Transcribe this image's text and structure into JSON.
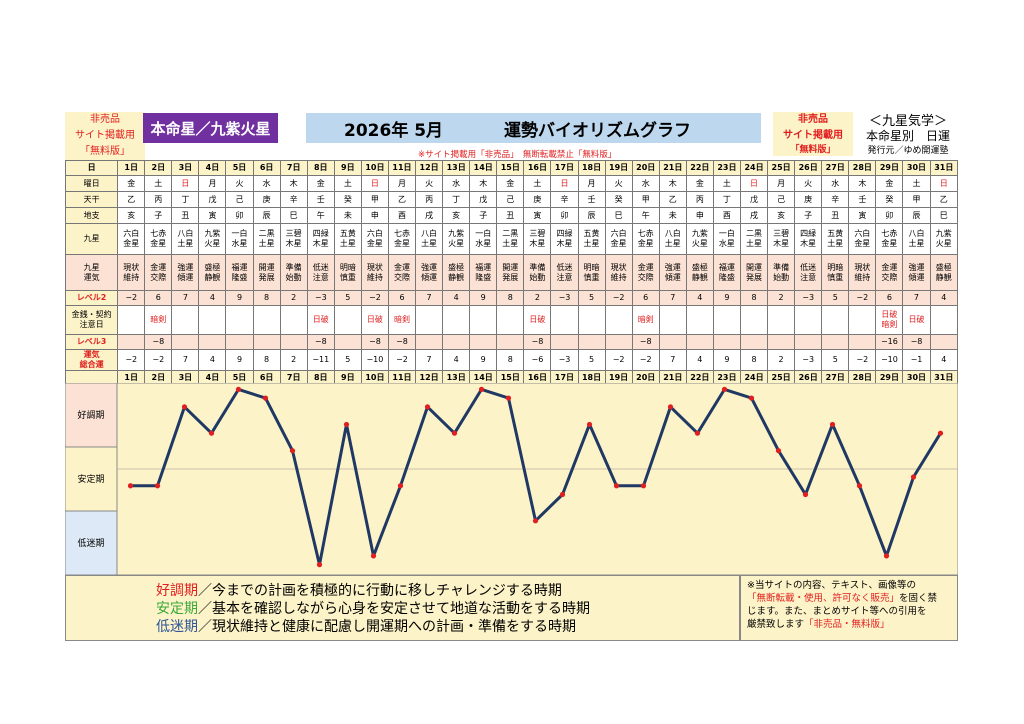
{
  "header": {
    "badge_left": [
      "非売品",
      "サイト掲載用",
      "「無料版」"
    ],
    "honmei": "本命星／九紫火星",
    "title_date": "2026年 5月",
    "title_main": "運勢バイオリズムグラフ",
    "badge_right": [
      "非売品",
      "サイト掲載用",
      "「無料版」"
    ],
    "kyusei_title": "＜九星気学＞",
    "kyusei_sub": "本命星別　日運",
    "publisher": "発行元／ゆめ開運塾",
    "notice": "※サイト掲載用「非売品」　無断転載禁止「無料版」"
  },
  "table": {
    "labels": {
      "day": "日",
      "dow": "曜日",
      "kan": "天干",
      "shi": "地支",
      "star": "九星",
      "unki": [
        "九星",
        "運気"
      ],
      "lv2": "レベル2",
      "kin": [
        "金銭・契約",
        "注意日"
      ],
      "lv3": "レベル3",
      "total": [
        "運気",
        "総合運"
      ]
    },
    "days": [
      "1日",
      "2日",
      "3日",
      "4日",
      "5日",
      "6日",
      "7日",
      "8日",
      "9日",
      "10日",
      "11日",
      "12日",
      "13日",
      "14日",
      "15日",
      "16日",
      "17日",
      "18日",
      "19日",
      "20日",
      "21日",
      "22日",
      "23日",
      "24日",
      "25日",
      "26日",
      "27日",
      "28日",
      "29日",
      "30日",
      "31日"
    ],
    "dow": [
      "金",
      "土",
      "日",
      "月",
      "火",
      "水",
      "木",
      "金",
      "土",
      "日",
      "月",
      "火",
      "水",
      "木",
      "金",
      "土",
      "日",
      "月",
      "火",
      "水",
      "木",
      "金",
      "土",
      "日",
      "月",
      "火",
      "水",
      "木",
      "金",
      "土",
      "日"
    ],
    "kan": [
      "乙",
      "丙",
      "丁",
      "戊",
      "己",
      "庚",
      "辛",
      "壬",
      "癸",
      "甲",
      "乙",
      "丙",
      "丁",
      "戊",
      "己",
      "庚",
      "辛",
      "壬",
      "癸",
      "甲",
      "乙",
      "丙",
      "丁",
      "戊",
      "己",
      "庚",
      "辛",
      "壬",
      "癸",
      "甲",
      "乙"
    ],
    "shi": [
      "亥",
      "子",
      "丑",
      "寅",
      "卯",
      "辰",
      "巳",
      "午",
      "未",
      "申",
      "酉",
      "戌",
      "亥",
      "子",
      "丑",
      "寅",
      "卯",
      "辰",
      "巳",
      "午",
      "未",
      "申",
      "酉",
      "戌",
      "亥",
      "子",
      "丑",
      "寅",
      "卯",
      "辰",
      "巳"
    ],
    "star": [
      [
        "六白",
        "金星"
      ],
      [
        "七赤",
        "金星"
      ],
      [
        "八白",
        "土星"
      ],
      [
        "九紫",
        "火星"
      ],
      [
        "一白",
        "水星"
      ],
      [
        "二黒",
        "土星"
      ],
      [
        "三碧",
        "木星"
      ],
      [
        "四緑",
        "木星"
      ],
      [
        "五黄",
        "土星"
      ],
      [
        "六白",
        "金星"
      ],
      [
        "七赤",
        "金星"
      ],
      [
        "八白",
        "土星"
      ],
      [
        "九紫",
        "火星"
      ],
      [
        "一白",
        "水星"
      ],
      [
        "二黒",
        "土星"
      ],
      [
        "三碧",
        "木星"
      ],
      [
        "四緑",
        "木星"
      ],
      [
        "五黄",
        "土星"
      ],
      [
        "六白",
        "金星"
      ],
      [
        "七赤",
        "金星"
      ],
      [
        "八白",
        "土星"
      ],
      [
        "九紫",
        "火星"
      ],
      [
        "一白",
        "水星"
      ],
      [
        "二黒",
        "土星"
      ],
      [
        "三碧",
        "木星"
      ],
      [
        "四緑",
        "木星"
      ],
      [
        "五黄",
        "土星"
      ],
      [
        "六白",
        "金星"
      ],
      [
        "七赤",
        "金星"
      ],
      [
        "八白",
        "土星"
      ],
      [
        "九紫",
        "火星"
      ]
    ],
    "unki": [
      [
        "現状",
        "維持"
      ],
      [
        "金運",
        "交際"
      ],
      [
        "強運",
        "傾運"
      ],
      [
        "盛極",
        "静観"
      ],
      [
        "福運",
        "隆盛"
      ],
      [
        "開運",
        "発展"
      ],
      [
        "準備",
        "始動"
      ],
      [
        "低迷",
        "注意"
      ],
      [
        "明暗",
        "慎重"
      ],
      [
        "現状",
        "維持"
      ],
      [
        "金運",
        "交際"
      ],
      [
        "強運",
        "傾運"
      ],
      [
        "盛極",
        "静観"
      ],
      [
        "福運",
        "隆盛"
      ],
      [
        "開運",
        "発展"
      ],
      [
        "準備",
        "始動"
      ],
      [
        "低迷",
        "注意"
      ],
      [
        "明暗",
        "慎重"
      ],
      [
        "現状",
        "維持"
      ],
      [
        "金運",
        "交際"
      ],
      [
        "強運",
        "傾運"
      ],
      [
        "盛極",
        "静観"
      ],
      [
        "福運",
        "隆盛"
      ],
      [
        "開運",
        "発展"
      ],
      [
        "準備",
        "始動"
      ],
      [
        "低迷",
        "注意"
      ],
      [
        "明暗",
        "慎重"
      ],
      [
        "現状",
        "維持"
      ],
      [
        "金運",
        "交際"
      ],
      [
        "強運",
        "傾運"
      ],
      [
        "盛極",
        "静観"
      ]
    ],
    "lv2": [
      "−2",
      "6",
      "7",
      "4",
      "9",
      "8",
      "2",
      "−3",
      "5",
      "−2",
      "6",
      "7",
      "4",
      "9",
      "8",
      "2",
      "−3",
      "5",
      "−2",
      "6",
      "7",
      "4",
      "9",
      "8",
      "2",
      "−3",
      "5",
      "−2",
      "6",
      "7",
      "4"
    ],
    "kin": [
      [],
      [
        "暗剣"
      ],
      [],
      [],
      [],
      [],
      [],
      [
        "日破"
      ],
      [],
      [
        "日破"
      ],
      [
        "暗剣"
      ],
      [],
      [],
      [],
      [],
      [
        "日破"
      ],
      [],
      [],
      [],
      [
        "暗剣"
      ],
      [],
      [],
      [],
      [],
      [],
      [],
      [],
      [],
      [
        "日破",
        "暗剣"
      ],
      [
        "日破"
      ],
      []
    ],
    "lv3": [
      "",
      "−8",
      "",
      "",
      "",
      "",
      "",
      "−8",
      "",
      "−8",
      "−8",
      "",
      "",
      "",
      "",
      "−8",
      "",
      "",
      "",
      "−8",
      "",
      "",
      "",
      "",
      "",
      "",
      "",
      "",
      "−16",
      "−8",
      ""
    ],
    "total": [
      "−2",
      "−2",
      "7",
      "4",
      "9",
      "8",
      "2",
      "−11",
      "5",
      "−10",
      "−2",
      "7",
      "4",
      "9",
      "8",
      "−6",
      "−3",
      "5",
      "−2",
      "−2",
      "7",
      "4",
      "9",
      "8",
      "2",
      "−3",
      "5",
      "−2",
      "−10",
      "−1",
      "4"
    ]
  },
  "chart_labels": {
    "good": "好調期",
    "stable": "安定期",
    "low": "低迷期"
  },
  "chart_data": {
    "type": "line",
    "x": [
      "1日",
      "2日",
      "3日",
      "4日",
      "5日",
      "6日",
      "7日",
      "8日",
      "9日",
      "10日",
      "11日",
      "12日",
      "13日",
      "14日",
      "15日",
      "16日",
      "17日",
      "18日",
      "19日",
      "20日",
      "21日",
      "22日",
      "23日",
      "24日",
      "25日",
      "26日",
      "27日",
      "28日",
      "29日",
      "30日",
      "31日"
    ],
    "series": [
      {
        "values": [
          -2,
          -2,
          7,
          4,
          9,
          8,
          2,
          -11,
          5,
          -10,
          -2,
          7,
          4,
          9,
          8,
          -6,
          -3,
          5,
          -2,
          -2,
          7,
          4,
          9,
          8,
          2,
          -3,
          5,
          -2,
          -10,
          -1,
          4
        ]
      }
    ],
    "bands": [
      "好調期",
      "安定期",
      "低迷期"
    ],
    "ylim": [
      -11.5,
      9.5
    ],
    "line_color": "#1f3864",
    "point_color": "#e02020"
  },
  "legend": {
    "lines": [
      {
        "term": "好調期",
        "text": "／今までの計画を積極的に行動に移しチャレンジする時期",
        "color": "#e02020"
      },
      {
        "term": "安定期",
        "text": "／基本を確認しながら心身を安定させて地道な活動をする時期",
        "color": "#3aa83a"
      },
      {
        "term": "低迷期",
        "text": "／現状維持と健康に配慮し開運期への計画・準備をする時期",
        "color": "#2f5597"
      }
    ]
  },
  "notes": {
    "line1": "※当サイトの内容、テキスト、画像等の",
    "line2_red": "「無断転載・使用、許可なく販売」",
    "line2_rest": "を固く禁",
    "line3": "じます。また、まとめサイト等への引用を",
    "line4_a": "厳禁致します",
    "line4_red": "「非売品・無料版」"
  },
  "colors": {
    "red": "#e02020",
    "purple": "#7030a0",
    "blue_title": "#bdd7ee",
    "cream": "#fdf3c8",
    "pink": "#fbe2d5"
  }
}
